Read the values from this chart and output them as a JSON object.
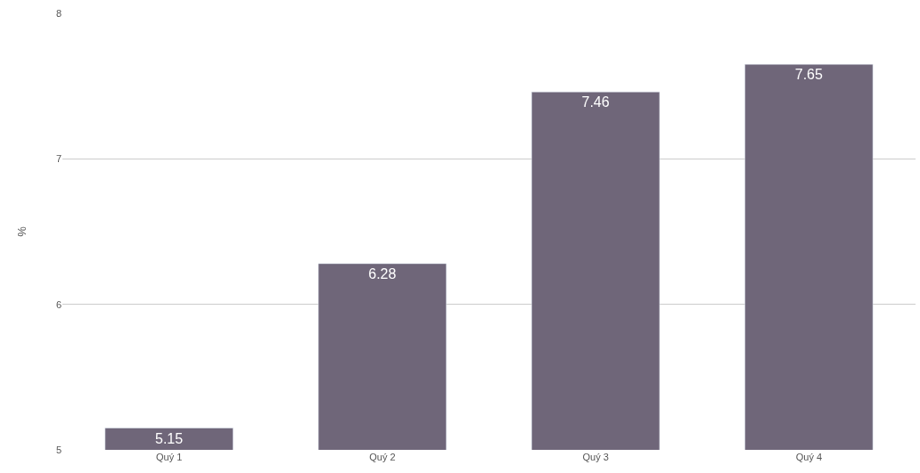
{
  "chart_data": {
    "type": "bar",
    "ylabel": "%",
    "categories": [
      "Quý 1",
      "Quý 2",
      "Quý 3",
      "Quý 4"
    ],
    "values": [
      5.15,
      6.28,
      7.46,
      7.65
    ],
    "color": "#6f6679",
    "ylim": [
      5,
      8
    ],
    "yticks": [
      5,
      6,
      7,
      8
    ],
    "grid": "y",
    "data_labels": true
  }
}
